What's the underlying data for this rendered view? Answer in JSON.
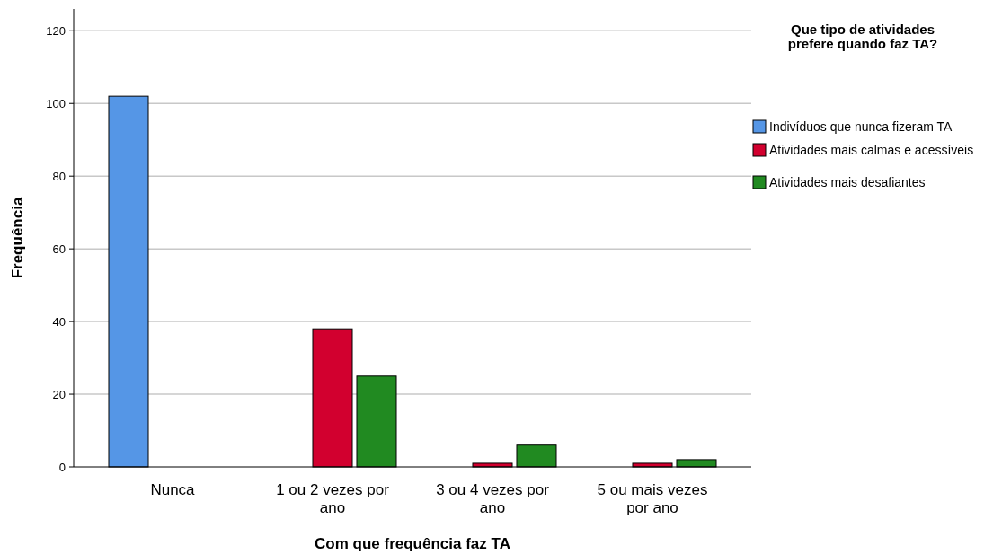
{
  "chart_data": {
    "type": "bar",
    "xlabel": "Com que frequência faz TA",
    "ylabel": "Frequência",
    "legend_title": "Que tipo de atividades prefere quando faz TA?",
    "categories": [
      "Nunca",
      "1 ou 2 vezes por ano",
      "3 ou 4 vezes por ano",
      "5 ou mais vezes por ano"
    ],
    "series": [
      {
        "name": "Indivíduos que nunca fizeram TA",
        "color": "#5596e6",
        "values": [
          102,
          null,
          null,
          null
        ]
      },
      {
        "name": "Atividades mais calmas e acessíveis",
        "color": "#d2002f",
        "values": [
          null,
          38,
          1,
          1
        ]
      },
      {
        "name": "Atividades mais desafiantes",
        "color": "#218a21",
        "values": [
          null,
          25,
          6,
          2
        ]
      }
    ],
    "ylim": [
      0,
      126
    ],
    "yticks": [
      0,
      20,
      40,
      60,
      80,
      100,
      120
    ],
    "grid": "y",
    "legend": "top right"
  }
}
